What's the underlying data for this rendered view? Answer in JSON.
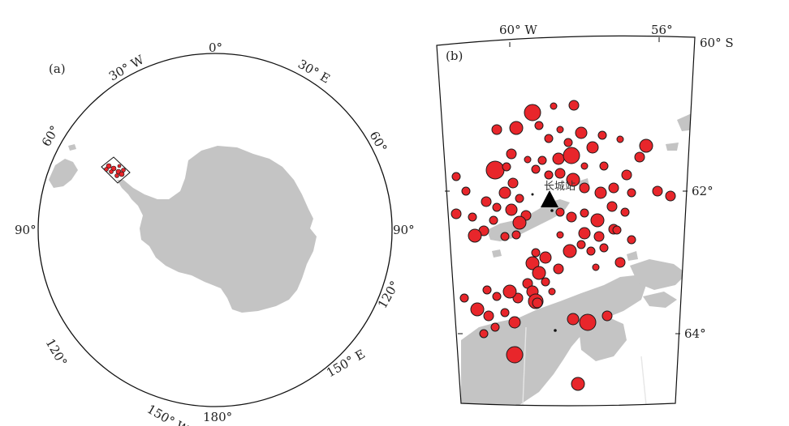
{
  "panel_a": {
    "label": "(a)",
    "lon_labels": {
      "n0": "0°",
      "w30": "30° W",
      "e30": "30° E",
      "w60": "60°",
      "e60": "60°",
      "w90": "90°",
      "e90": "90°",
      "w120": "120°",
      "e120": "120°",
      "w150": "150° W",
      "e150": "150° E",
      "s180": "180°"
    }
  },
  "panel_b": {
    "label": "(b)",
    "top_lon_labels": [
      "60° W",
      "56°"
    ],
    "right_lat_labels": [
      "60° S",
      "62°",
      "64°"
    ],
    "station_name": "长城站",
    "colors": {
      "quake": "#e8262b",
      "land": "#c4c4c4",
      "station": "#000000"
    }
  }
}
